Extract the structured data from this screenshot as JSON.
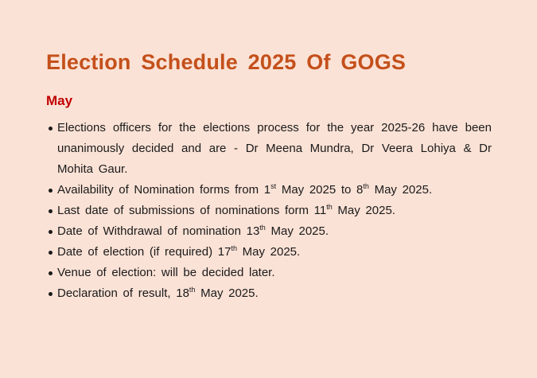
{
  "title": "Election Schedule 2025 Of GOGS",
  "month": "May",
  "colors": {
    "background": "#fbe2d6",
    "title": "#c4501b",
    "month": "#c00000"
  },
  "items": [
    {
      "parts": [
        {
          "t": "Elections officers for the elections process for the year 2025-26 have been unanimously decided and are - Dr Meena Mundra, Dr Veera Lohiya & Dr Mohita Gaur."
        }
      ]
    },
    {
      "parts": [
        {
          "t": "Availability of Nomination forms from 1"
        },
        {
          "sup": "st"
        },
        {
          "t": " May 2025 to 8"
        },
        {
          "sup": "th"
        },
        {
          "t": " May 2025."
        }
      ]
    },
    {
      "parts": [
        {
          "t": "Last date of submissions of nominations form 11"
        },
        {
          "sup": "th"
        },
        {
          "t": " May 2025."
        }
      ]
    },
    {
      "parts": [
        {
          "t": "Date of Withdrawal of nomination 13"
        },
        {
          "sup": "th"
        },
        {
          "t": " May 2025."
        }
      ]
    },
    {
      "parts": [
        {
          "t": "Date of election (if required) 17"
        },
        {
          "sup": "th"
        },
        {
          "t": " May 2025."
        }
      ]
    },
    {
      "parts": [
        {
          "t": "Venue of election: will be decided later."
        }
      ]
    },
    {
      "parts": [
        {
          "t": "Declaration of result, 18"
        },
        {
          "sup": "th"
        },
        {
          "t": " May 2025."
        }
      ]
    }
  ]
}
